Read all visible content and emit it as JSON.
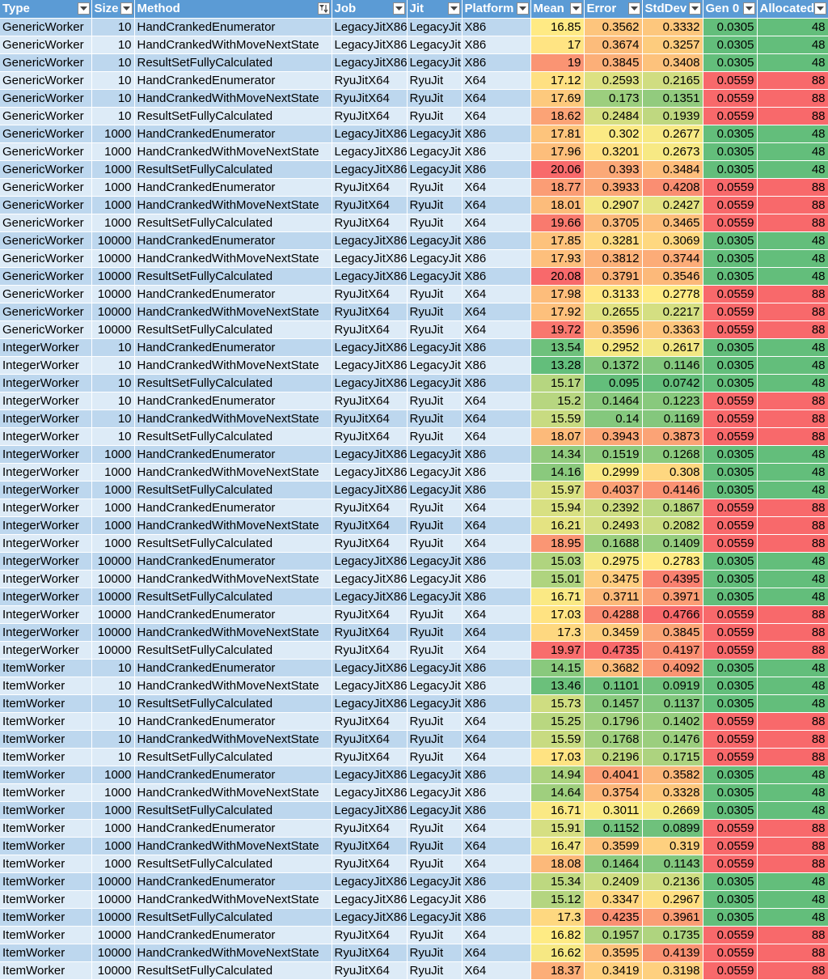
{
  "sheet": {
    "headers": [
      "Type",
      "Size",
      "Method",
      "Job",
      "Jit",
      "Platform",
      "Mean",
      "Error",
      "StdDev",
      "Gen 0",
      "Allocated"
    ],
    "sorted_column": "Method",
    "filter_icon": "dropdown-arrow-icon",
    "sort_filter_icon": "sort-filter-icon",
    "colors": {
      "header": "#5b9bd5",
      "band_dark": "#bdd7ee",
      "band_light": "#ddebf7",
      "scale_low": "#63be7b",
      "scale_mid": "#ffeb84",
      "scale_high": "#f8696b"
    },
    "rows": [
      [
        "GenericWorker",
        "10",
        "HandCrankedEnumerator",
        "LegacyJitX86",
        "LegacyJit",
        "X86",
        "16.85",
        "0.3562",
        "0.3332",
        "0.0305",
        "48"
      ],
      [
        "GenericWorker",
        "10",
        "HandCrankedWithMoveNextState",
        "LegacyJitX86",
        "LegacyJit",
        "X86",
        "17",
        "0.3674",
        "0.3257",
        "0.0305",
        "48"
      ],
      [
        "GenericWorker",
        "10",
        "ResultSetFullyCalculated",
        "LegacyJitX86",
        "LegacyJit",
        "X86",
        "19",
        "0.3845",
        "0.3408",
        "0.0305",
        "48"
      ],
      [
        "GenericWorker",
        "10",
        "HandCrankedEnumerator",
        "RyuJitX64",
        "RyuJit",
        "X64",
        "17.12",
        "0.2593",
        "0.2165",
        "0.0559",
        "88"
      ],
      [
        "GenericWorker",
        "10",
        "HandCrankedWithMoveNextState",
        "RyuJitX64",
        "RyuJit",
        "X64",
        "17.69",
        "0.173",
        "0.1351",
        "0.0559",
        "88"
      ],
      [
        "GenericWorker",
        "10",
        "ResultSetFullyCalculated",
        "RyuJitX64",
        "RyuJit",
        "X64",
        "18.62",
        "0.2484",
        "0.1939",
        "0.0559",
        "88"
      ],
      [
        "GenericWorker",
        "1000",
        "HandCrankedEnumerator",
        "LegacyJitX86",
        "LegacyJit",
        "X86",
        "17.81",
        "0.302",
        "0.2677",
        "0.0305",
        "48"
      ],
      [
        "GenericWorker",
        "1000",
        "HandCrankedWithMoveNextState",
        "LegacyJitX86",
        "LegacyJit",
        "X86",
        "17.96",
        "0.3201",
        "0.2673",
        "0.0305",
        "48"
      ],
      [
        "GenericWorker",
        "1000",
        "ResultSetFullyCalculated",
        "LegacyJitX86",
        "LegacyJit",
        "X86",
        "20.06",
        "0.393",
        "0.3484",
        "0.0305",
        "48"
      ],
      [
        "GenericWorker",
        "1000",
        "HandCrankedEnumerator",
        "RyuJitX64",
        "RyuJit",
        "X64",
        "18.77",
        "0.3933",
        "0.4208",
        "0.0559",
        "88"
      ],
      [
        "GenericWorker",
        "1000",
        "HandCrankedWithMoveNextState",
        "RyuJitX64",
        "RyuJit",
        "X64",
        "18.01",
        "0.2907",
        "0.2427",
        "0.0559",
        "88"
      ],
      [
        "GenericWorker",
        "1000",
        "ResultSetFullyCalculated",
        "RyuJitX64",
        "RyuJit",
        "X64",
        "19.66",
        "0.3705",
        "0.3465",
        "0.0559",
        "88"
      ],
      [
        "GenericWorker",
        "10000",
        "HandCrankedEnumerator",
        "LegacyJitX86",
        "LegacyJit",
        "X86",
        "17.85",
        "0.3281",
        "0.3069",
        "0.0305",
        "48"
      ],
      [
        "GenericWorker",
        "10000",
        "HandCrankedWithMoveNextState",
        "LegacyJitX86",
        "LegacyJit",
        "X86",
        "17.93",
        "0.3812",
        "0.3744",
        "0.0305",
        "48"
      ],
      [
        "GenericWorker",
        "10000",
        "ResultSetFullyCalculated",
        "LegacyJitX86",
        "LegacyJit",
        "X86",
        "20.08",
        "0.3791",
        "0.3546",
        "0.0305",
        "48"
      ],
      [
        "GenericWorker",
        "10000",
        "HandCrankedEnumerator",
        "RyuJitX64",
        "RyuJit",
        "X64",
        "17.98",
        "0.3133",
        "0.2778",
        "0.0559",
        "88"
      ],
      [
        "GenericWorker",
        "10000",
        "HandCrankedWithMoveNextState",
        "RyuJitX64",
        "RyuJit",
        "X64",
        "17.92",
        "0.2655",
        "0.2217",
        "0.0559",
        "88"
      ],
      [
        "GenericWorker",
        "10000",
        "ResultSetFullyCalculated",
        "RyuJitX64",
        "RyuJit",
        "X64",
        "19.72",
        "0.3596",
        "0.3363",
        "0.0559",
        "88"
      ],
      [
        "IntegerWorker",
        "10",
        "HandCrankedEnumerator",
        "LegacyJitX86",
        "LegacyJit",
        "X86",
        "13.54",
        "0.2952",
        "0.2617",
        "0.0305",
        "48"
      ],
      [
        "IntegerWorker",
        "10",
        "HandCrankedWithMoveNextState",
        "LegacyJitX86",
        "LegacyJit",
        "X86",
        "13.28",
        "0.1372",
        "0.1146",
        "0.0305",
        "48"
      ],
      [
        "IntegerWorker",
        "10",
        "ResultSetFullyCalculated",
        "LegacyJitX86",
        "LegacyJit",
        "X86",
        "15.17",
        "0.095",
        "0.0742",
        "0.0305",
        "48"
      ],
      [
        "IntegerWorker",
        "10",
        "HandCrankedEnumerator",
        "RyuJitX64",
        "RyuJit",
        "X64",
        "15.2",
        "0.1464",
        "0.1223",
        "0.0559",
        "88"
      ],
      [
        "IntegerWorker",
        "10",
        "HandCrankedWithMoveNextState",
        "RyuJitX64",
        "RyuJit",
        "X64",
        "15.59",
        "0.14",
        "0.1169",
        "0.0559",
        "88"
      ],
      [
        "IntegerWorker",
        "10",
        "ResultSetFullyCalculated",
        "RyuJitX64",
        "RyuJit",
        "X64",
        "18.07",
        "0.3943",
        "0.3873",
        "0.0559",
        "88"
      ],
      [
        "IntegerWorker",
        "1000",
        "HandCrankedEnumerator",
        "LegacyJitX86",
        "LegacyJit",
        "X86",
        "14.34",
        "0.1519",
        "0.1268",
        "0.0305",
        "48"
      ],
      [
        "IntegerWorker",
        "1000",
        "HandCrankedWithMoveNextState",
        "LegacyJitX86",
        "LegacyJit",
        "X86",
        "14.16",
        "0.2999",
        "0.308",
        "0.0305",
        "48"
      ],
      [
        "IntegerWorker",
        "1000",
        "ResultSetFullyCalculated",
        "LegacyJitX86",
        "LegacyJit",
        "X86",
        "15.97",
        "0.4037",
        "0.4146",
        "0.0305",
        "48"
      ],
      [
        "IntegerWorker",
        "1000",
        "HandCrankedEnumerator",
        "RyuJitX64",
        "RyuJit",
        "X64",
        "15.94",
        "0.2392",
        "0.1867",
        "0.0559",
        "88"
      ],
      [
        "IntegerWorker",
        "1000",
        "HandCrankedWithMoveNextState",
        "RyuJitX64",
        "RyuJit",
        "X64",
        "16.21",
        "0.2493",
        "0.2082",
        "0.0559",
        "88"
      ],
      [
        "IntegerWorker",
        "1000",
        "ResultSetFullyCalculated",
        "RyuJitX64",
        "RyuJit",
        "X64",
        "18.95",
        "0.1688",
        "0.1409",
        "0.0559",
        "88"
      ],
      [
        "IntegerWorker",
        "10000",
        "HandCrankedEnumerator",
        "LegacyJitX86",
        "LegacyJit",
        "X86",
        "15.03",
        "0.2975",
        "0.2783",
        "0.0305",
        "48"
      ],
      [
        "IntegerWorker",
        "10000",
        "HandCrankedWithMoveNextState",
        "LegacyJitX86",
        "LegacyJit",
        "X86",
        "15.01",
        "0.3475",
        "0.4395",
        "0.0305",
        "48"
      ],
      [
        "IntegerWorker",
        "10000",
        "ResultSetFullyCalculated",
        "LegacyJitX86",
        "LegacyJit",
        "X86",
        "16.71",
        "0.3711",
        "0.3971",
        "0.0305",
        "48"
      ],
      [
        "IntegerWorker",
        "10000",
        "HandCrankedEnumerator",
        "RyuJitX64",
        "RyuJit",
        "X64",
        "17.03",
        "0.4288",
        "0.4766",
        "0.0559",
        "88"
      ],
      [
        "IntegerWorker",
        "10000",
        "HandCrankedWithMoveNextState",
        "RyuJitX64",
        "RyuJit",
        "X64",
        "17.3",
        "0.3459",
        "0.3845",
        "0.0559",
        "88"
      ],
      [
        "IntegerWorker",
        "10000",
        "ResultSetFullyCalculated",
        "RyuJitX64",
        "RyuJit",
        "X64",
        "19.97",
        "0.4735",
        "0.4197",
        "0.0559",
        "88"
      ],
      [
        "ItemWorker",
        "10",
        "HandCrankedEnumerator",
        "LegacyJitX86",
        "LegacyJit",
        "X86",
        "14.15",
        "0.3682",
        "0.4092",
        "0.0305",
        "48"
      ],
      [
        "ItemWorker",
        "10",
        "HandCrankedWithMoveNextState",
        "LegacyJitX86",
        "LegacyJit",
        "X86",
        "13.46",
        "0.1101",
        "0.0919",
        "0.0305",
        "48"
      ],
      [
        "ItemWorker",
        "10",
        "ResultSetFullyCalculated",
        "LegacyJitX86",
        "LegacyJit",
        "X86",
        "15.73",
        "0.1457",
        "0.1137",
        "0.0305",
        "48"
      ],
      [
        "ItemWorker",
        "10",
        "HandCrankedEnumerator",
        "RyuJitX64",
        "RyuJit",
        "X64",
        "15.25",
        "0.1796",
        "0.1402",
        "0.0559",
        "88"
      ],
      [
        "ItemWorker",
        "10",
        "HandCrankedWithMoveNextState",
        "RyuJitX64",
        "RyuJit",
        "X64",
        "15.59",
        "0.1768",
        "0.1476",
        "0.0559",
        "88"
      ],
      [
        "ItemWorker",
        "10",
        "ResultSetFullyCalculated",
        "RyuJitX64",
        "RyuJit",
        "X64",
        "17.03",
        "0.2196",
        "0.1715",
        "0.0559",
        "88"
      ],
      [
        "ItemWorker",
        "1000",
        "HandCrankedEnumerator",
        "LegacyJitX86",
        "LegacyJit",
        "X86",
        "14.94",
        "0.4041",
        "0.3582",
        "0.0305",
        "48"
      ],
      [
        "ItemWorker",
        "1000",
        "HandCrankedWithMoveNextState",
        "LegacyJitX86",
        "LegacyJit",
        "X86",
        "14.64",
        "0.3754",
        "0.3328",
        "0.0305",
        "48"
      ],
      [
        "ItemWorker",
        "1000",
        "ResultSetFullyCalculated",
        "LegacyJitX86",
        "LegacyJit",
        "X86",
        "16.71",
        "0.3011",
        "0.2669",
        "0.0305",
        "48"
      ],
      [
        "ItemWorker",
        "1000",
        "HandCrankedEnumerator",
        "RyuJitX64",
        "RyuJit",
        "X64",
        "15.91",
        "0.1152",
        "0.0899",
        "0.0559",
        "88"
      ],
      [
        "ItemWorker",
        "1000",
        "HandCrankedWithMoveNextState",
        "RyuJitX64",
        "RyuJit",
        "X64",
        "16.47",
        "0.3599",
        "0.319",
        "0.0559",
        "88"
      ],
      [
        "ItemWorker",
        "1000",
        "ResultSetFullyCalculated",
        "RyuJitX64",
        "RyuJit",
        "X64",
        "18.08",
        "0.1464",
        "0.1143",
        "0.0559",
        "88"
      ],
      [
        "ItemWorker",
        "10000",
        "HandCrankedEnumerator",
        "LegacyJitX86",
        "LegacyJit",
        "X86",
        "15.34",
        "0.2409",
        "0.2136",
        "0.0305",
        "48"
      ],
      [
        "ItemWorker",
        "10000",
        "HandCrankedWithMoveNextState",
        "LegacyJitX86",
        "LegacyJit",
        "X86",
        "15.12",
        "0.3347",
        "0.2967",
        "0.0305",
        "48"
      ],
      [
        "ItemWorker",
        "10000",
        "ResultSetFullyCalculated",
        "LegacyJitX86",
        "LegacyJit",
        "X86",
        "17.3",
        "0.4235",
        "0.3961",
        "0.0305",
        "48"
      ],
      [
        "ItemWorker",
        "10000",
        "HandCrankedEnumerator",
        "RyuJitX64",
        "RyuJit",
        "X64",
        "16.82",
        "0.1957",
        "0.1735",
        "0.0559",
        "88"
      ],
      [
        "ItemWorker",
        "10000",
        "HandCrankedWithMoveNextState",
        "RyuJitX64",
        "RyuJit",
        "X64",
        "16.62",
        "0.3595",
        "0.4139",
        "0.0559",
        "88"
      ],
      [
        "ItemWorker",
        "10000",
        "ResultSetFullyCalculated",
        "RyuJitX64",
        "RyuJit",
        "X64",
        "18.37",
        "0.3419",
        "0.3198",
        "0.0559",
        "88"
      ]
    ]
  }
}
